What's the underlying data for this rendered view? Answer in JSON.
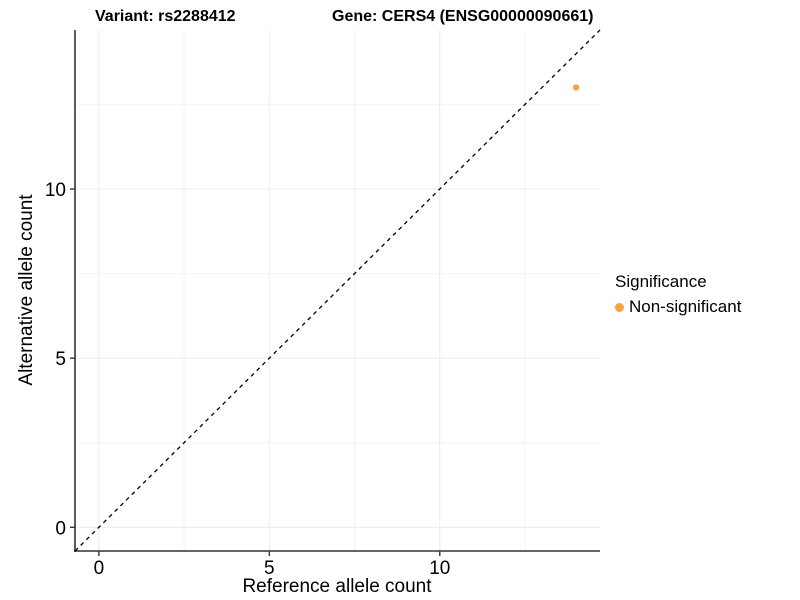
{
  "chart_data": {
    "type": "scatter",
    "titles": {
      "left": "Variant: rs2288412",
      "right": "Gene: CERS4 (ENSG00000090661)"
    },
    "xlabel": "Reference allele count",
    "ylabel": "Alternative allele count",
    "xlim": [
      -0.7,
      14.7
    ],
    "ylim": [
      -0.7,
      14.7
    ],
    "x_major_ticks": [
      0,
      5,
      10
    ],
    "y_major_ticks": [
      0,
      5,
      10
    ],
    "x_minor_gridlines": [
      2.5,
      7.5,
      12.5
    ],
    "y_minor_gridlines": [
      2.5,
      7.5,
      12.5
    ],
    "identity_line": {
      "equation": "y = x",
      "style": "dashed",
      "color": "#000000",
      "from": [
        -0.7,
        -0.7
      ],
      "to": [
        14.7,
        14.7
      ]
    },
    "series": [
      {
        "name": "Non-significant",
        "color": "#F9A03F",
        "points": [
          {
            "x": 14,
            "y": 13
          }
        ]
      }
    ],
    "legend": {
      "title": "Significance",
      "position": "right",
      "items": [
        {
          "label": "Non-significant",
          "color": "#F9A03F"
        }
      ]
    },
    "grid": true,
    "colors": {
      "axis_line": "#333333",
      "tick_mark": "#333333",
      "grid_major": "#ECECEC",
      "grid_minor": "#F4F4F4",
      "point": "#F9A03F"
    }
  }
}
